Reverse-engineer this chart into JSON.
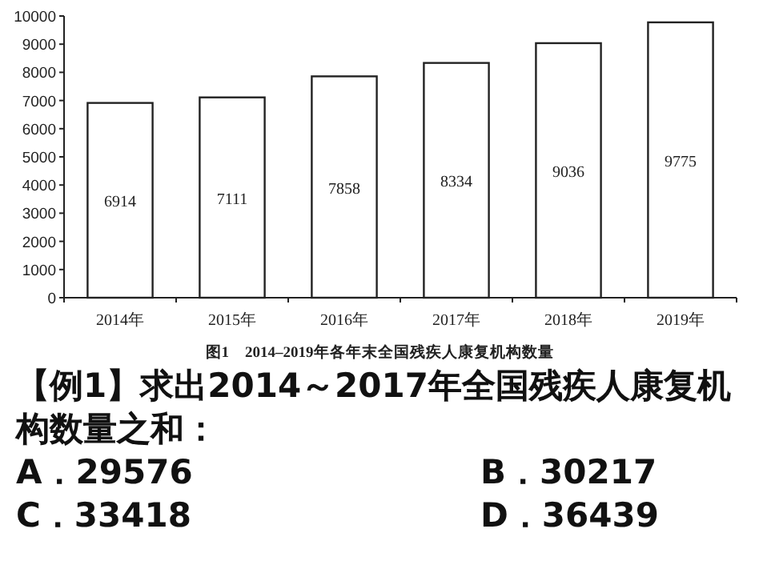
{
  "chart_data": {
    "type": "bar",
    "title": "图1　2014–2019年各年末全国残疾人康复机构数量",
    "categories": [
      "2014年",
      "2015年",
      "2016年",
      "2017年",
      "2018年",
      "2019年"
    ],
    "values": [
      6914,
      7111,
      7858,
      8334,
      9036,
      9775
    ],
    "color": "#ffffff",
    "ylim": [
      0,
      10000
    ],
    "yticks": [
      0,
      1000,
      2000,
      3000,
      4000,
      5000,
      6000,
      7000,
      8000,
      9000,
      10000
    ],
    "data_labels": true,
    "grid": false,
    "annotations": [
      "【例1】求出2014～2017年全国残疾人康复机构数量之和：",
      "A．29576",
      "B．30217",
      "C．33418",
      "D．36439"
    ]
  }
}
